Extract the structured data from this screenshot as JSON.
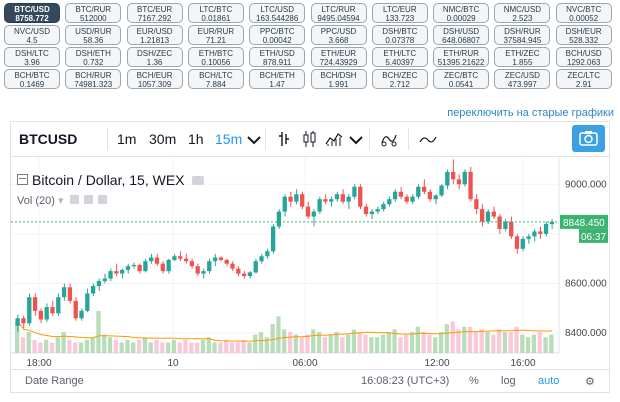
{
  "tickers": [
    {
      "pair": "BTC/USD",
      "value": "8758.772",
      "active": true
    },
    {
      "pair": "BTC/RUR",
      "value": "512000"
    },
    {
      "pair": "BTC/EUR",
      "value": "7167.292"
    },
    {
      "pair": "LTC/BTC",
      "value": "0.01861"
    },
    {
      "pair": "LTC/USD",
      "value": "163.544286"
    },
    {
      "pair": "LTC/RUR",
      "value": "9495.04594"
    },
    {
      "pair": "LTC/EUR",
      "value": "133.723"
    },
    {
      "pair": "NMC/BTC",
      "value": "0.00029"
    },
    {
      "pair": "NMC/USD",
      "value": "2.523"
    },
    {
      "pair": "NVC/BTC",
      "value": "0.00052"
    },
    {
      "pair": "NVC/USD",
      "value": "4.5"
    },
    {
      "pair": "USD/RUR",
      "value": "58.36"
    },
    {
      "pair": "EUR/USD",
      "value": "1.21813"
    },
    {
      "pair": "EUR/RUR",
      "value": "71.21"
    },
    {
      "pair": "PPC/BTC",
      "value": "0.00042"
    },
    {
      "pair": "PPC/USD",
      "value": "3.668"
    },
    {
      "pair": "DSH/BTC",
      "value": "0.07378"
    },
    {
      "pair": "DSH/USD",
      "value": "648.06807"
    },
    {
      "pair": "DSH/RUR",
      "value": "37584.945"
    },
    {
      "pair": "DSH/EUR",
      "value": "528.332"
    },
    {
      "pair": "DSH/LTC",
      "value": "3.96"
    },
    {
      "pair": "DSH/ETH",
      "value": "0.732"
    },
    {
      "pair": "DSH/ZEC",
      "value": "1.36"
    },
    {
      "pair": "ETH/BTC",
      "value": "0.10056"
    },
    {
      "pair": "ETH/USD",
      "value": "878.911"
    },
    {
      "pair": "ETH/EUR",
      "value": "724.43929"
    },
    {
      "pair": "ETH/LTC",
      "value": "5.40397"
    },
    {
      "pair": "ETH/RUR",
      "value": "51395.21622"
    },
    {
      "pair": "ETH/ZEC",
      "value": "1.855"
    },
    {
      "pair": "BCH/USD",
      "value": "1292.063"
    },
    {
      "pair": "BCH/BTC",
      "value": "0.1469"
    },
    {
      "pair": "BCH/RUR",
      "value": "74981.323"
    },
    {
      "pair": "BCH/EUR",
      "value": "1057.309"
    },
    {
      "pair": "BCH/LTC",
      "value": "7.884"
    },
    {
      "pair": "BCH/ETH",
      "value": "1.47"
    },
    {
      "pair": "BCH/DSH",
      "value": "1.991"
    },
    {
      "pair": "BCH/ZEC",
      "value": "2.712"
    },
    {
      "pair": "ZEC/BTC",
      "value": "0.0541"
    },
    {
      "pair": "ZEC/USD",
      "value": "473.997"
    },
    {
      "pair": "ZEC/LTC",
      "value": "2.91"
    }
  ],
  "old_charts_link": "переключить на старые графики",
  "toolbar": {
    "symbol": "BTCUSD",
    "intervals": [
      "1m",
      "30m",
      "1h",
      "15m"
    ],
    "selected_interval": "15m"
  },
  "legend": {
    "title": "Bitcoin / Dollar, 15, WEX",
    "volume": "Vol (20)"
  },
  "price_axis": {
    "ticks": [
      "9000.000",
      "8600.000",
      "8400.000"
    ],
    "last_price": "8848.450",
    "countdown": "06:37"
  },
  "time_axis": {
    "ticks": [
      "18:00",
      "10",
      "06:00",
      "12:00",
      "16:00"
    ]
  },
  "bottom_bar": {
    "date_range": "Date Range",
    "clock": "16:08:23 (UTC+3)",
    "percent": "%",
    "log": "log",
    "auto": "auto"
  },
  "colors": {
    "up": "#26a69a",
    "down": "#ef5350",
    "accent": "#2196f3",
    "last_price_bg": "#3cb371"
  },
  "chart_data": {
    "type": "candlestick",
    "symbol": "BTCUSD",
    "interval": "15",
    "ylim": [
      8320,
      9110
    ],
    "candles": [
      [
        8430,
        8475,
        8405,
        8460
      ],
      [
        8460,
        8470,
        8420,
        8440
      ],
      [
        8440,
        8560,
        8430,
        8545
      ],
      [
        8545,
        8560,
        8470,
        8490
      ],
      [
        8490,
        8500,
        8440,
        8455
      ],
      [
        8455,
        8520,
        8445,
        8505
      ],
      [
        8505,
        8530,
        8470,
        8480
      ],
      [
        8480,
        8560,
        8470,
        8545
      ],
      [
        8545,
        8600,
        8530,
        8585
      ],
      [
        8585,
        8600,
        8520,
        8530
      ],
      [
        8530,
        8545,
        8450,
        8460
      ],
      [
        8460,
        8500,
        8450,
        8490
      ],
      [
        8490,
        8580,
        8485,
        8560
      ],
      [
        8560,
        8600,
        8550,
        8590
      ],
      [
        8590,
        8620,
        8570,
        8610
      ],
      [
        8610,
        8640,
        8600,
        8620
      ],
      [
        8620,
        8660,
        8610,
        8650
      ],
      [
        8650,
        8680,
        8630,
        8640
      ],
      [
        8640,
        8660,
        8620,
        8655
      ],
      [
        8655,
        8680,
        8640,
        8670
      ],
      [
        8670,
        8685,
        8660,
        8675
      ],
      [
        8675,
        8680,
        8640,
        8650
      ],
      [
        8650,
        8700,
        8645,
        8690
      ],
      [
        8690,
        8720,
        8680,
        8705
      ],
      [
        8705,
        8720,
        8670,
        8680
      ],
      [
        8680,
        8690,
        8640,
        8650
      ],
      [
        8650,
        8700,
        8640,
        8695
      ],
      [
        8695,
        8720,
        8690,
        8710
      ],
      [
        8710,
        8730,
        8690,
        8700
      ],
      [
        8700,
        8720,
        8680,
        8690
      ],
      [
        8690,
        8700,
        8660,
        8670
      ],
      [
        8670,
        8680,
        8630,
        8640
      ],
      [
        8640,
        8660,
        8620,
        8650
      ],
      [
        8650,
        8700,
        8640,
        8690
      ],
      [
        8690,
        8720,
        8670,
        8705
      ],
      [
        8705,
        8710,
        8690,
        8695
      ],
      [
        8695,
        8700,
        8670,
        8680
      ],
      [
        8680,
        8690,
        8650,
        8660
      ],
      [
        8660,
        8670,
        8630,
        8640
      ],
      [
        8640,
        8650,
        8620,
        8630
      ],
      [
        8630,
        8650,
        8620,
        8645
      ],
      [
        8645,
        8700,
        8640,
        8690
      ],
      [
        8690,
        8720,
        8680,
        8710
      ],
      [
        8710,
        8740,
        8700,
        8730
      ],
      [
        8730,
        8840,
        8720,
        8830
      ],
      [
        8830,
        8900,
        8820,
        8890
      ],
      [
        8890,
        8960,
        8870,
        8950
      ],
      [
        8950,
        8970,
        8910,
        8930
      ],
      [
        8930,
        8980,
        8920,
        8960
      ],
      [
        8960,
        8970,
        8900,
        8910
      ],
      [
        8910,
        8930,
        8860,
        8870
      ],
      [
        8870,
        8900,
        8830,
        8890
      ],
      [
        8890,
        8950,
        8880,
        8940
      ],
      [
        8940,
        8960,
        8920,
        8930
      ],
      [
        8930,
        8950,
        8910,
        8940
      ],
      [
        8940,
        8970,
        8930,
        8960
      ],
      [
        8960,
        8980,
        8920,
        8930
      ],
      [
        8930,
        8960,
        8900,
        8950
      ],
      [
        8950,
        9000,
        8940,
        8990
      ],
      [
        8990,
        9000,
        8900,
        8910
      ],
      [
        8910,
        8920,
        8870,
        8880
      ],
      [
        8880,
        8900,
        8860,
        8890
      ],
      [
        8890,
        8910,
        8880,
        8900
      ],
      [
        8900,
        8930,
        8890,
        8920
      ],
      [
        8920,
        8950,
        8910,
        8940
      ],
      [
        8940,
        8980,
        8930,
        8970
      ],
      [
        8970,
        8990,
        8940,
        8950
      ],
      [
        8950,
        8960,
        8920,
        8930
      ],
      [
        8930,
        8960,
        8920,
        8950
      ],
      [
        8950,
        9000,
        8940,
        8990
      ],
      [
        8990,
        9020,
        8960,
        8970
      ],
      [
        8970,
        8980,
        8930,
        8940
      ],
      [
        8940,
        8960,
        8920,
        8955
      ],
      [
        8955,
        9000,
        8950,
        8995
      ],
      [
        8995,
        9060,
        8980,
        9050
      ],
      [
        9050,
        9100,
        9000,
        9020
      ],
      [
        9020,
        9040,
        8980,
        9000
      ],
      [
        9000,
        9060,
        8990,
        9050
      ],
      [
        9050,
        9070,
        8930,
        8940
      ],
      [
        8940,
        8960,
        8880,
        8900
      ],
      [
        8900,
        8920,
        8830,
        8850
      ],
      [
        8850,
        8900,
        8840,
        8890
      ],
      [
        8890,
        8910,
        8860,
        8870
      ],
      [
        8870,
        8880,
        8800,
        8820
      ],
      [
        8820,
        8860,
        8810,
        8850
      ],
      [
        8850,
        8870,
        8780,
        8790
      ],
      [
        8790,
        8800,
        8720,
        8740
      ],
      [
        8740,
        8790,
        8730,
        8780
      ],
      [
        8780,
        8800,
        8760,
        8790
      ],
      [
        8790,
        8820,
        8770,
        8810
      ],
      [
        8810,
        8830,
        8780,
        8800
      ],
      [
        8800,
        8850,
        8790,
        8840
      ],
      [
        8840,
        8860,
        8820,
        8848.45
      ]
    ],
    "volumes": [
      60,
      30,
      40,
      25,
      20,
      25,
      20,
      30,
      40,
      25,
      20,
      20,
      25,
      30,
      80,
      35,
      30,
      25,
      20,
      25,
      20,
      25,
      30,
      20,
      25,
      20,
      20,
      25,
      20,
      25,
      20,
      20,
      25,
      30,
      20,
      20,
      25,
      20,
      20,
      25,
      20,
      35,
      40,
      30,
      55,
      70,
      45,
      40,
      35,
      30,
      35,
      45,
      40,
      30,
      35,
      40,
      30,
      35,
      45,
      40,
      35,
      30,
      30,
      35,
      40,
      45,
      30,
      35,
      40,
      50,
      40,
      35,
      30,
      40,
      55,
      60,
      45,
      50,
      50,
      40,
      45,
      40,
      35,
      45,
      40,
      40,
      50,
      35,
      30,
      35,
      40,
      30,
      35
    ]
  }
}
